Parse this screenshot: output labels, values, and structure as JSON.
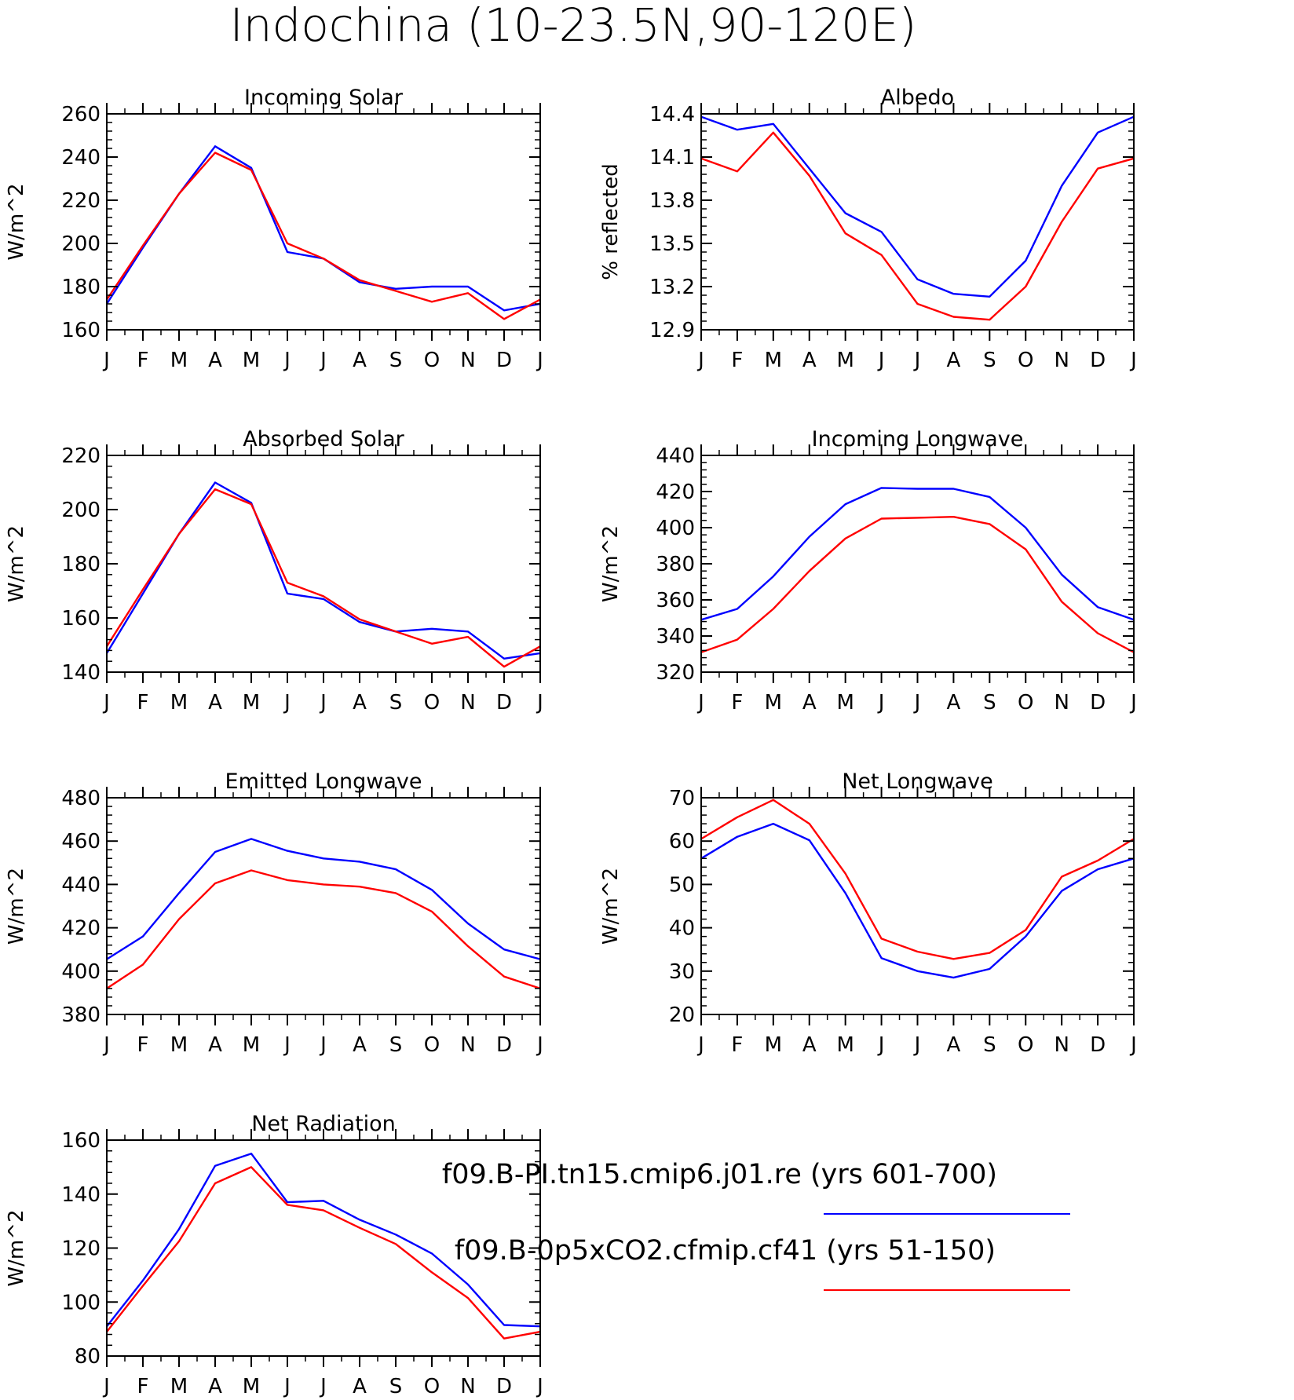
{
  "title": "Indochina (10-23.5N,90-120E)",
  "colors": {
    "series_1": "#0000ff",
    "series_2": "#ff0000"
  },
  "legend": [
    {
      "text": "f09.B-PI.tn15.cmip6.j01.re (yrs 601-700)",
      "color": "#0000ff"
    },
    {
      "text": "f09.B-0p5xCO2.cfmip.cf41 (yrs 51-150)",
      "color": "#ff0000"
    }
  ],
  "chart_data": [
    {
      "type": "line",
      "title": "Incoming Solar",
      "ylabel": "W/m^2",
      "x": [
        "J",
        "F",
        "M",
        "A",
        "M",
        "J",
        "J",
        "A",
        "S",
        "O",
        "N",
        "D",
        "J"
      ],
      "ylim": [
        160,
        260
      ],
      "yticks": [
        "160",
        "180",
        "200",
        "220",
        "240",
        "260"
      ],
      "series": [
        {
          "color": "#0000ff",
          "values": [
            172,
            198,
            223,
            245,
            235,
            196,
            193,
            182,
            179,
            180,
            180,
            169,
            172
          ]
        },
        {
          "color": "#ff0000",
          "values": [
            174,
            199,
            223,
            242,
            234,
            200,
            193,
            183,
            178,
            173,
            177,
            165,
            174
          ]
        }
      ]
    },
    {
      "type": "line",
      "title": "Albedo",
      "ylabel": "% reflected",
      "x": [
        "J",
        "F",
        "M",
        "A",
        "M",
        "J",
        "J",
        "A",
        "S",
        "O",
        "N",
        "D",
        "J"
      ],
      "ylim": [
        12.9,
        14.4
      ],
      "yticks": [
        "12.9",
        "13.2",
        "13.5",
        "13.8",
        "14.1",
        "14.4"
      ],
      "series": [
        {
          "color": "#0000ff",
          "values": [
            14.38,
            14.29,
            14.33,
            14.02,
            13.71,
            13.58,
            13.25,
            13.15,
            13.13,
            13.38,
            13.9,
            14.27,
            14.38
          ]
        },
        {
          "color": "#ff0000",
          "values": [
            14.09,
            14.0,
            14.27,
            13.97,
            13.57,
            13.42,
            13.08,
            12.99,
            12.97,
            13.2,
            13.65,
            14.02,
            14.09
          ]
        }
      ]
    },
    {
      "type": "line",
      "title": "Absorbed Solar",
      "ylabel": "W/m^2",
      "x": [
        "J",
        "F",
        "M",
        "A",
        "M",
        "J",
        "J",
        "A",
        "S",
        "O",
        "N",
        "D",
        "J"
      ],
      "ylim": [
        140,
        220
      ],
      "yticks": [
        "140",
        "160",
        "180",
        "200",
        "220"
      ],
      "series": [
        {
          "color": "#0000ff",
          "values": [
            147,
            169,
            191,
            210,
            202.5,
            169,
            167,
            158.5,
            155,
            156,
            155,
            145,
            147
          ]
        },
        {
          "color": "#ff0000",
          "values": [
            149.5,
            170.5,
            191,
            207.5,
            202,
            173,
            168,
            159.5,
            155,
            150.5,
            153,
            142,
            149.5
          ]
        }
      ]
    },
    {
      "type": "line",
      "title": "Incoming Longwave",
      "ylabel": "W/m^2",
      "x": [
        "J",
        "F",
        "M",
        "A",
        "M",
        "J",
        "J",
        "A",
        "S",
        "O",
        "N",
        "D",
        "J"
      ],
      "ylim": [
        320,
        440
      ],
      "yticks": [
        "320",
        "340",
        "360",
        "380",
        "400",
        "420",
        "440"
      ],
      "series": [
        {
          "color": "#0000ff",
          "values": [
            349,
            355,
            373,
            395,
            413,
            422,
            421.5,
            421.5,
            417,
            400,
            374,
            356,
            349
          ]
        },
        {
          "color": "#ff0000",
          "values": [
            331,
            338,
            355,
            376,
            394,
            405,
            405.5,
            406,
            402,
            388,
            359,
            341.5,
            331
          ]
        }
      ]
    },
    {
      "type": "line",
      "title": "Emitted Longwave",
      "ylabel": "W/m^2",
      "x": [
        "J",
        "F",
        "M",
        "A",
        "M",
        "J",
        "J",
        "A",
        "S",
        "O",
        "N",
        "D",
        "J"
      ],
      "ylim": [
        380,
        480
      ],
      "yticks": [
        "380",
        "400",
        "420",
        "440",
        "460",
        "480"
      ],
      "series": [
        {
          "color": "#0000ff",
          "values": [
            405.5,
            416,
            436,
            455,
            461,
            455.5,
            452,
            450.5,
            447,
            437.5,
            422,
            410,
            405.5
          ]
        },
        {
          "color": "#ff0000",
          "values": [
            392,
            403,
            424,
            440.5,
            446.5,
            442,
            440,
            439,
            436,
            427.5,
            411.5,
            397.5,
            392
          ]
        }
      ]
    },
    {
      "type": "line",
      "title": "Net Longwave",
      "ylabel": "W/m^2",
      "x": [
        "J",
        "F",
        "M",
        "A",
        "M",
        "J",
        "J",
        "A",
        "S",
        "O",
        "N",
        "D",
        "J"
      ],
      "ylim": [
        20,
        70
      ],
      "yticks": [
        "20",
        "30",
        "40",
        "50",
        "60",
        "70"
      ],
      "series": [
        {
          "color": "#0000ff",
          "values": [
            56,
            61,
            64,
            60.2,
            48,
            33,
            30,
            28.5,
            30.5,
            38,
            48.5,
            53.5,
            56
          ]
        },
        {
          "color": "#ff0000",
          "values": [
            60.5,
            65.5,
            69.5,
            64,
            52.5,
            37.5,
            34.5,
            32.8,
            34.2,
            39.5,
            51.8,
            55.5,
            60.5
          ]
        }
      ]
    },
    {
      "type": "line",
      "title": "Net Radiation",
      "ylabel": "W/m^2",
      "x": [
        "J",
        "F",
        "M",
        "A",
        "M",
        "J",
        "J",
        "A",
        "S",
        "O",
        "N",
        "D",
        "J"
      ],
      "ylim": [
        80,
        160
      ],
      "yticks": [
        "80",
        "100",
        "120",
        "140",
        "160"
      ],
      "series": [
        {
          "color": "#0000ff",
          "values": [
            91,
            108,
            127,
            150.5,
            155,
            137,
            137.5,
            130.5,
            125,
            118,
            106.5,
            91.5,
            91
          ]
        },
        {
          "color": "#ff0000",
          "values": [
            89,
            106,
            122.5,
            144,
            150,
            136,
            134,
            127.5,
            121.5,
            111,
            101.5,
            86.5,
            89
          ]
        }
      ]
    }
  ]
}
